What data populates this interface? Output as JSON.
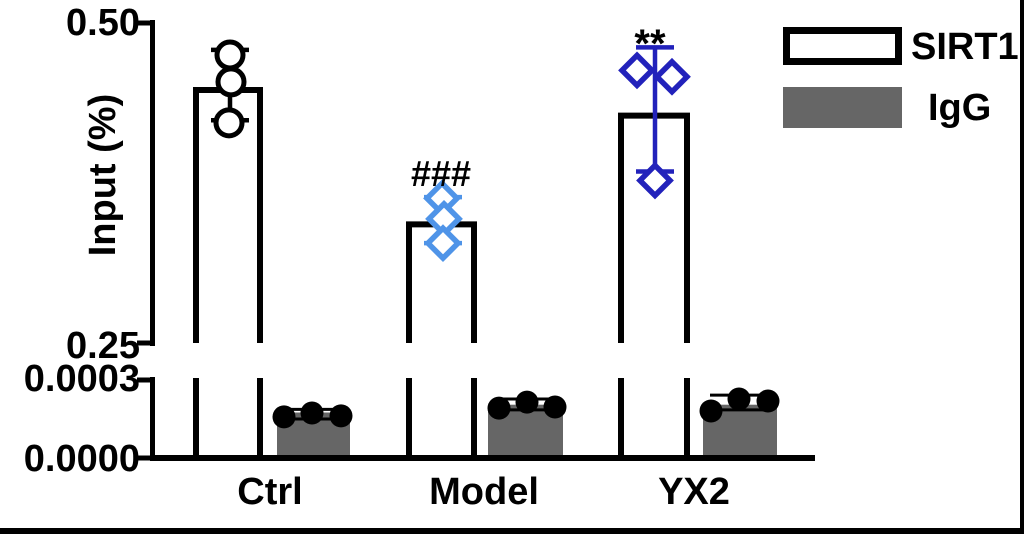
{
  "chart_data": {
    "type": "bar",
    "title": "",
    "ylabel": "Input (%)",
    "categories": [
      "Ctrl",
      "Model",
      "YX2"
    ],
    "axis": {
      "broken": true,
      "upper_ticks": [
        "0.50",
        "0.25"
      ],
      "lower_ticks": [
        "0.0003",
        "0.0000"
      ],
      "upper_range": [
        0.25,
        0.5
      ],
      "lower_range": [
        0,
        0.0003
      ],
      "grid": false
    },
    "series": [
      {
        "name": "SIRT1",
        "fill": "#ffffff",
        "stroke": "#000000",
        "values": [
          0.45,
          0.345,
          0.43
        ],
        "points": [
          [
            0.475,
            0.454,
            0.422
          ],
          [
            0.363,
            0.347,
            0.328
          ],
          [
            0.463,
            0.458,
            0.377
          ]
        ],
        "error_low": [
          0.424,
          0.328,
          0.384
        ],
        "error_high": [
          0.479,
          0.364,
          0.481
        ],
        "marker_shapes": [
          "circle",
          "diamond",
          "diamond"
        ],
        "marker_colors": [
          "#000000",
          "#4f94e8",
          "#2222bb"
        ]
      },
      {
        "name": "IgG",
        "fill": "#666666",
        "stroke": "none",
        "values": [
          0.000175,
          0.000205,
          0.000205
        ],
        "points": [
          [
            0.000158,
            0.000173,
            0.000162
          ],
          [
            0.000192,
            0.000215,
            0.000196
          ],
          [
            0.000181,
            0.000227,
            0.000219
          ]
        ],
        "error_low": [
          0.00015,
          0.000185,
          0.000185
        ],
        "error_high": [
          0.000187,
          0.000227,
          0.000242
        ],
        "marker_shapes": [
          "dot",
          "dot",
          "dot"
        ],
        "marker_colors": [
          "#000000",
          "#000000",
          "#000000"
        ]
      }
    ],
    "annotations": [
      {
        "text": "###",
        "target": "Model SIRT1 bar"
      },
      {
        "text": "**",
        "target": "YX2 SIRT1 bar"
      }
    ],
    "legend_position": "top-right"
  },
  "legend": {
    "items": [
      {
        "label": "SIRT1",
        "fill": "#ffffff",
        "border": "#000000"
      },
      {
        "label": "IgG",
        "fill": "#666666",
        "border": "none"
      }
    ]
  },
  "frame": {
    "right_border": "#000000",
    "bottom_border": "#000000"
  }
}
